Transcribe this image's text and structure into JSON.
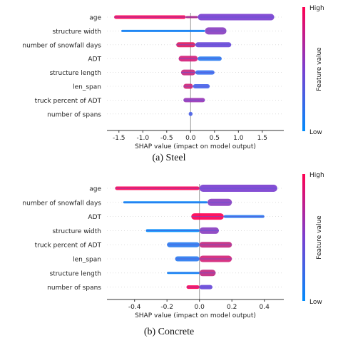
{
  "chart_data": [
    {
      "type": "beeswarm",
      "caption": "(a)  Steel",
      "xlabel": "SHAP value (impact on model output)",
      "xlim": [
        -1.75,
        1.95
      ],
      "xticks": [
        "-1.5",
        "-1.0",
        "-0.5",
        "0.0",
        "0.5",
        "1.0",
        "1.5"
      ],
      "xtick_values": [
        -1.5,
        -1.0,
        -0.5,
        0.0,
        0.5,
        1.0,
        1.5
      ],
      "colorbar": {
        "label": "Feature value",
        "high": "High",
        "low": "Low",
        "high_color": "#ff0052",
        "low_color": "#008bfb"
      },
      "features": [
        {
          "name": "age",
          "min": -1.6,
          "max": 1.75,
          "segments": [
            {
              "from": -1.6,
              "to": -0.1,
              "color": "#ff0052",
              "w": 5
            },
            {
              "from": 0.15,
              "to": 1.75,
              "color": "#7a3fd0",
              "w": 9
            },
            {
              "from": -0.1,
              "to": 0.15,
              "color": "#c2186f",
              "w": 3
            }
          ]
        },
        {
          "name": "structure width",
          "min": -1.45,
          "max": 0.75,
          "segments": [
            {
              "from": -1.45,
              "to": 0.3,
              "color": "#008bfb",
              "w": 3
            },
            {
              "from": 0.3,
              "to": 0.75,
              "color": "#8a3fc0",
              "w": 10
            }
          ]
        },
        {
          "name": "number of snowfall days",
          "min": -0.3,
          "max": 0.85,
          "segments": [
            {
              "from": -0.3,
              "to": 0.1,
              "color": "#e0195f",
              "w": 7
            },
            {
              "from": 0.1,
              "to": 0.85,
              "color": "#6a48d8",
              "w": 7
            }
          ]
        },
        {
          "name": "ADT",
          "min": -0.25,
          "max": 0.65,
          "segments": [
            {
              "from": -0.25,
              "to": 0.15,
              "color": "#d4207a",
              "w": 8
            },
            {
              "from": 0.15,
              "to": 0.65,
              "color": "#2a7cf0",
              "w": 6
            }
          ]
        },
        {
          "name": "structure length",
          "min": -0.2,
          "max": 0.5,
          "segments": [
            {
              "from": -0.2,
              "to": 0.1,
              "color": "#c7287f",
              "w": 8
            },
            {
              "from": 0.1,
              "to": 0.5,
              "color": "#3b70f0",
              "w": 6
            }
          ]
        },
        {
          "name": "len_span",
          "min": -0.15,
          "max": 0.4,
          "segments": [
            {
              "from": -0.15,
              "to": 0.05,
              "color": "#d22576",
              "w": 7
            },
            {
              "from": 0.05,
              "to": 0.4,
              "color": "#4a66ea",
              "w": 6
            }
          ]
        },
        {
          "name": "truck percent of ADT",
          "min": -0.15,
          "max": 0.3,
          "segments": [
            {
              "from": -0.15,
              "to": 0.3,
              "color": "#9a36b6",
              "w": 6
            }
          ]
        },
        {
          "name": "number of spans",
          "min": -0.04,
          "max": 0.04,
          "segments": [
            {
              "from": -0.04,
              "to": 0.04,
              "color": "#4a66ea",
              "w": 6
            }
          ]
        }
      ]
    },
    {
      "type": "beeswarm",
      "caption": "(b) Concrete",
      "xlabel": "SHAP value (impact on model output)",
      "xlim": [
        -0.57,
        0.52
      ],
      "xticks": [
        "-0.4",
        "-0.2",
        "0.0",
        "0.2",
        "0.4"
      ],
      "xtick_values": [
        -0.4,
        -0.2,
        0.0,
        0.2,
        0.4
      ],
      "colorbar": {
        "label": "Feature value",
        "high": "High",
        "low": "Low",
        "high_color": "#ff0052",
        "low_color": "#008bfb"
      },
      "features": [
        {
          "name": "age",
          "min": -0.52,
          "max": 0.48,
          "segments": [
            {
              "from": -0.52,
              "to": 0.0,
              "color": "#ff0052",
              "w": 5
            },
            {
              "from": 0.0,
              "to": 0.48,
              "color": "#7a3fd0",
              "w": 10
            }
          ]
        },
        {
          "name": "number of snowfall days",
          "min": -0.47,
          "max": 0.2,
          "segments": [
            {
              "from": -0.47,
              "to": 0.05,
              "color": "#008bfb",
              "w": 3
            },
            {
              "from": 0.05,
              "to": 0.2,
              "color": "#8a3fc0",
              "w": 10
            }
          ]
        },
        {
          "name": "ADT",
          "min": -0.05,
          "max": 0.4,
          "segments": [
            {
              "from": -0.05,
              "to": 0.15,
              "color": "#ff0052",
              "w": 9
            },
            {
              "from": 0.15,
              "to": 0.4,
              "color": "#2a7cf0",
              "w": 4
            }
          ]
        },
        {
          "name": "structure width",
          "min": -0.33,
          "max": 0.12,
          "segments": [
            {
              "from": -0.33,
              "to": 0.0,
              "color": "#008bfb",
              "w": 4
            },
            {
              "from": 0.0,
              "to": 0.12,
              "color": "#8a3fc0",
              "w": 9
            }
          ]
        },
        {
          "name": "truck percent of ADT",
          "min": -0.2,
          "max": 0.2,
          "segments": [
            {
              "from": -0.2,
              "to": 0.0,
              "color": "#2a7cf0",
              "w": 7
            },
            {
              "from": 0.0,
              "to": 0.2,
              "color": "#c22880",
              "w": 8
            }
          ]
        },
        {
          "name": "len_span",
          "min": -0.15,
          "max": 0.2,
          "segments": [
            {
              "from": -0.15,
              "to": 0.0,
              "color": "#2a7cf0",
              "w": 7
            },
            {
              "from": 0.0,
              "to": 0.2,
              "color": "#d32478",
              "w": 9
            }
          ]
        },
        {
          "name": "structure length",
          "min": -0.2,
          "max": 0.1,
          "segments": [
            {
              "from": -0.2,
              "to": 0.0,
              "color": "#008bfb",
              "w": 3
            },
            {
              "from": 0.0,
              "to": 0.1,
              "color": "#c22880",
              "w": 9
            }
          ]
        },
        {
          "name": "number of spans",
          "min": -0.08,
          "max": 0.08,
          "segments": [
            {
              "from": -0.08,
              "to": 0.0,
              "color": "#ff0052",
              "w": 5
            },
            {
              "from": 0.0,
              "to": 0.08,
              "color": "#6a48d8",
              "w": 6
            }
          ]
        }
      ]
    }
  ]
}
